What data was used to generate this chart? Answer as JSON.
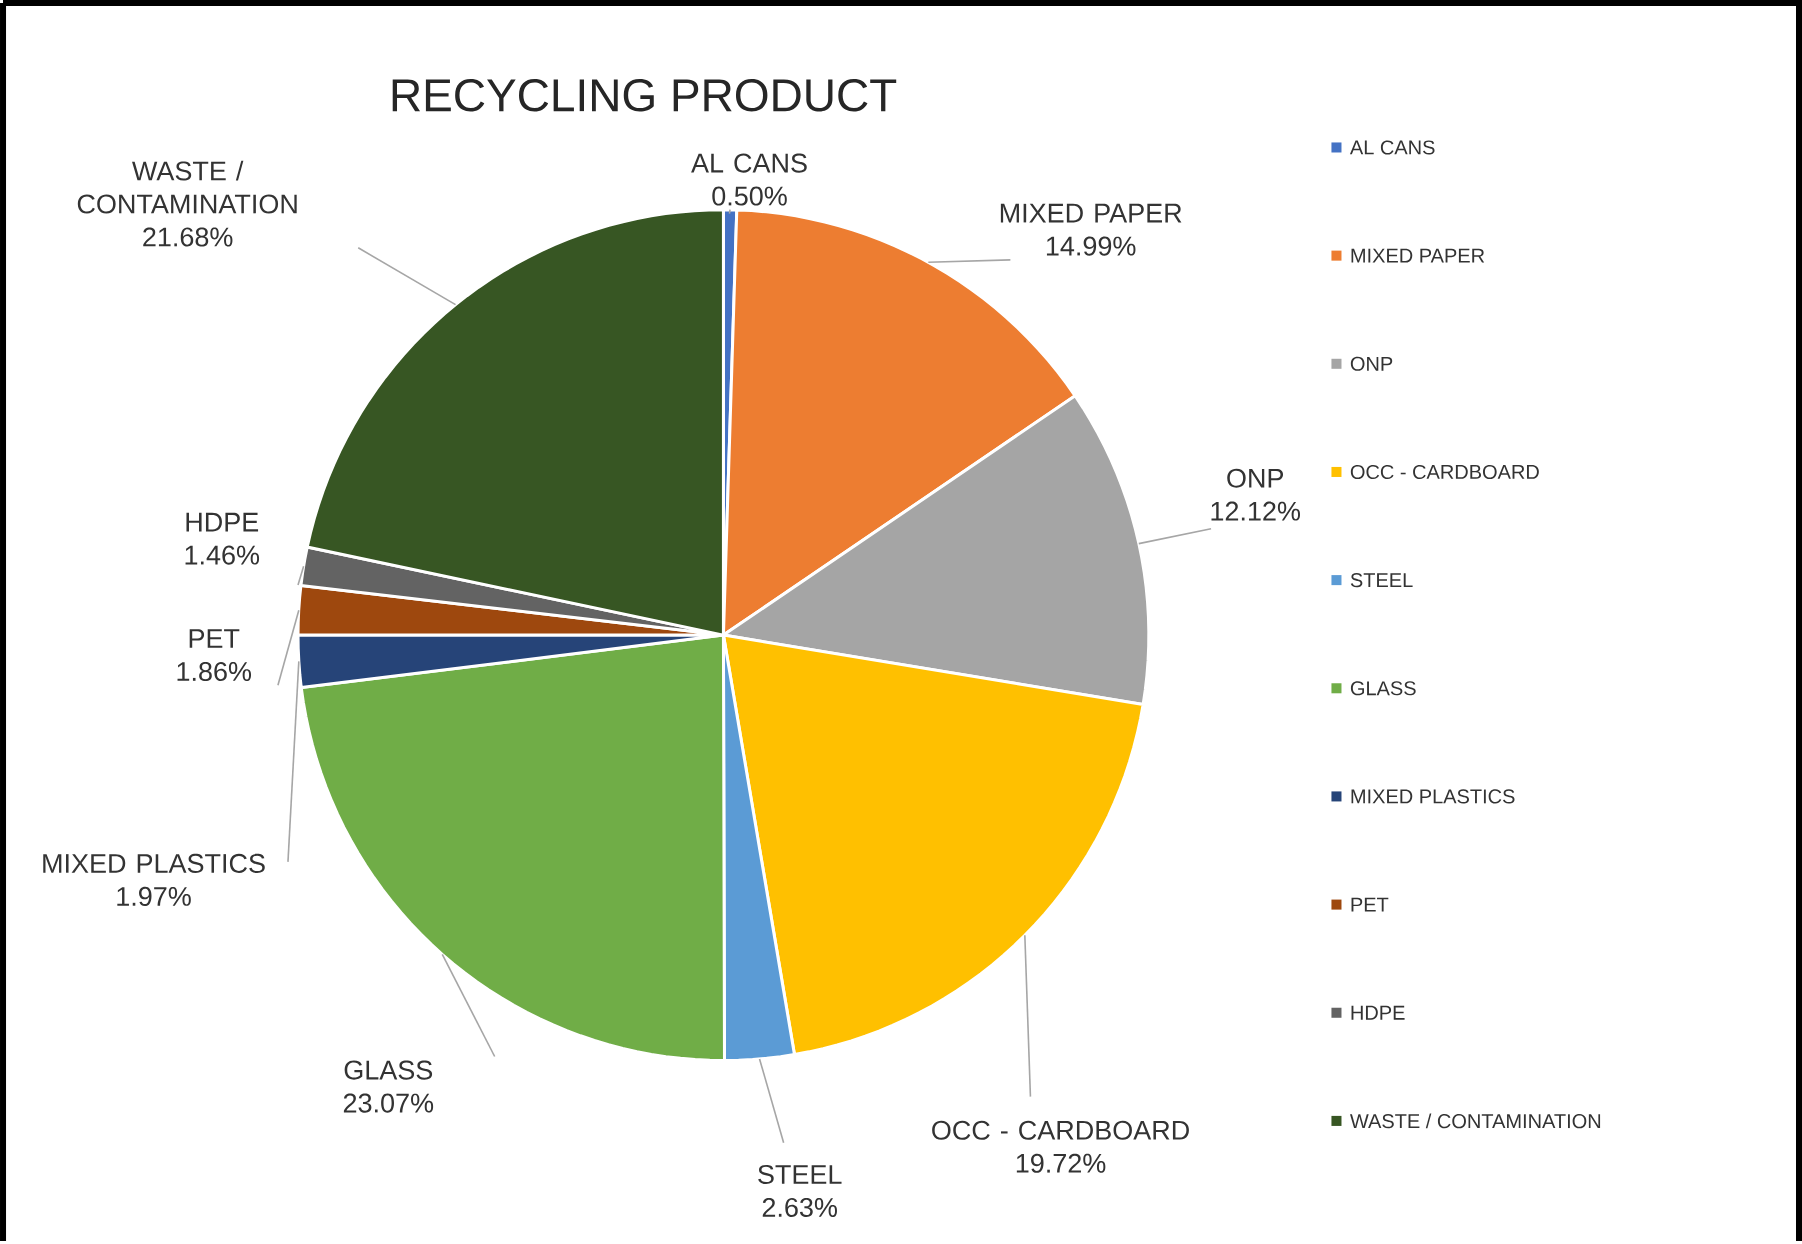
{
  "chart_data": {
    "type": "pie",
    "title": "RECYCLING PRODUCT",
    "categories": [
      "AL CANS",
      "MIXED PAPER",
      "ONP",
      "OCC - CARDBOARD",
      "STEEL",
      "GLASS",
      "MIXED PLASTICS",
      "PET",
      "HDPE",
      "WASTE / CONTAMINATION"
    ],
    "values": [
      0.5,
      14.99,
      12.12,
      19.72,
      2.63,
      23.07,
      1.97,
      1.86,
      1.46,
      21.68
    ],
    "value_labels": [
      "0.50%",
      "14.99%",
      "12.12%",
      "19.72%",
      "2.63%",
      "23.07%",
      "1.97%",
      "1.86%",
      "1.46%",
      "21.68%"
    ],
    "colors": [
      "#4472c4",
      "#ed7d31",
      "#a5a5a5",
      "#ffc000",
      "#5b9bd5",
      "#70ad47",
      "#264478",
      "#9e480e",
      "#636363",
      "#375623"
    ],
    "legend": "right"
  }
}
